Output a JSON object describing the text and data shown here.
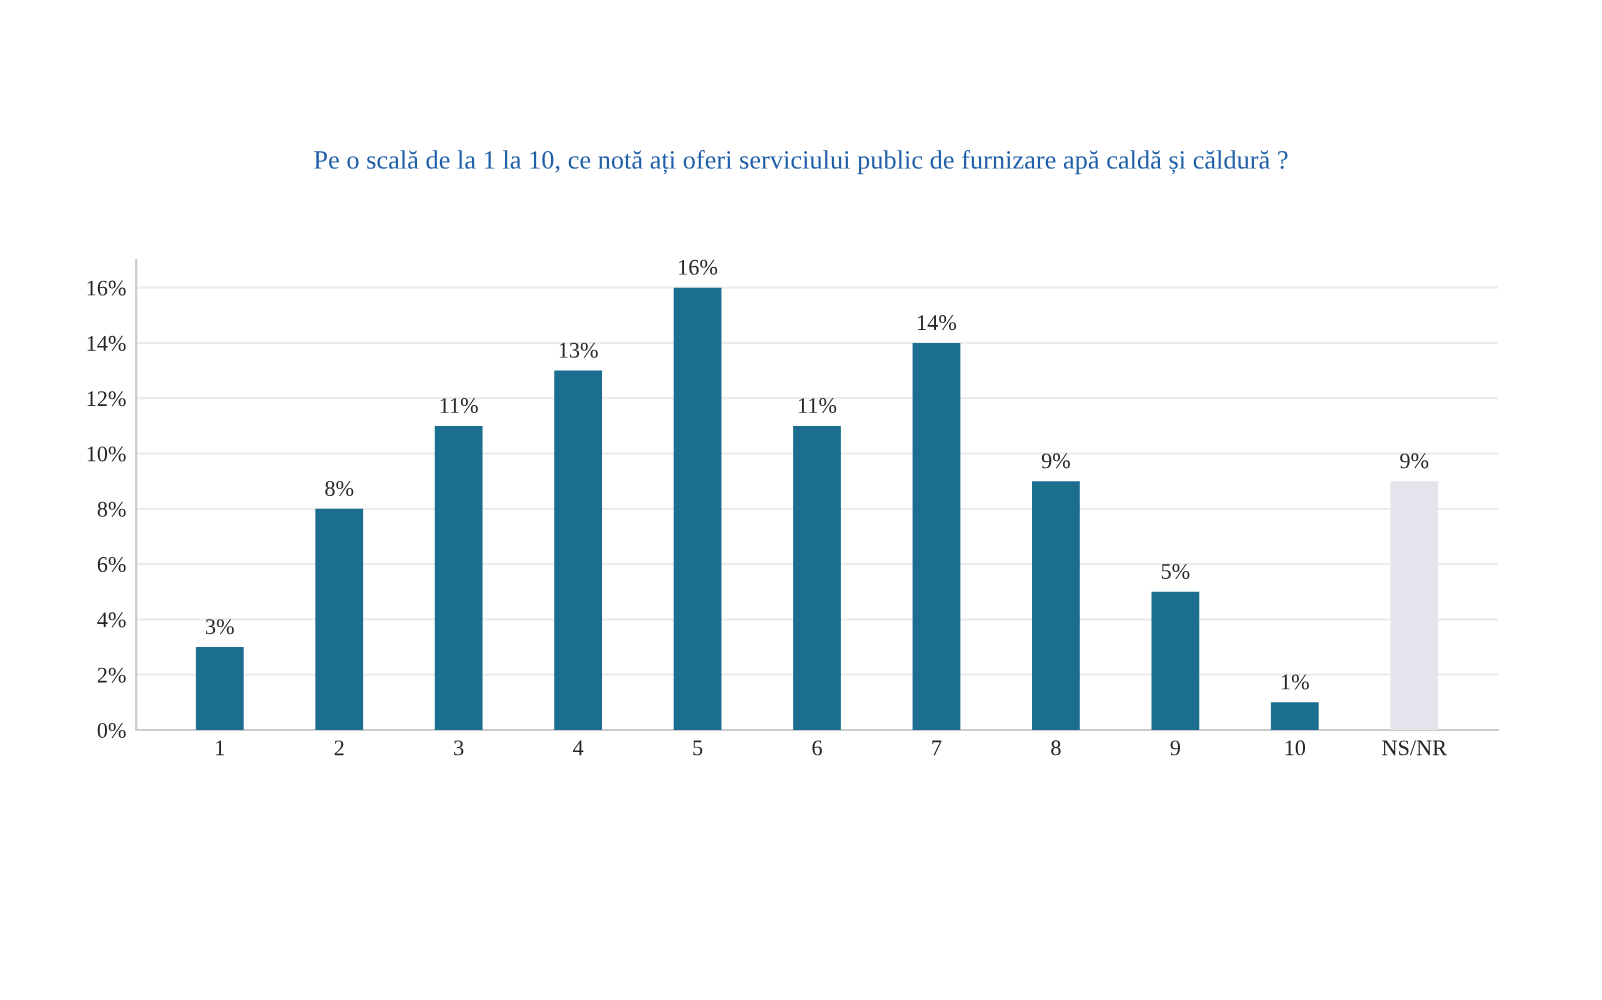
{
  "chart_data": {
    "type": "bar",
    "title": "Pe o scală de la 1 la 10, ce notă ați oferi serviciului public de furnizare apă caldă și căldură ?",
    "categories": [
      "1",
      "2",
      "3",
      "4",
      "5",
      "6",
      "7",
      "8",
      "9",
      "10",
      "NS/NR"
    ],
    "values": [
      3,
      8,
      11,
      13,
      16,
      11,
      14,
      9,
      5,
      1,
      9
    ],
    "colors": [
      "#1c6e91",
      "#1c6e91",
      "#1c6e91",
      "#1c6e91",
      "#1c6e91",
      "#1c6e91",
      "#1c6e91",
      "#1c6e91",
      "#1c6e91",
      "#1c6e91",
      "#e4e4ec"
    ],
    "value_labels": [
      "3%",
      "8%",
      "11%",
      "13%",
      "16%",
      "11%",
      "14%",
      "9%",
      "5%",
      "1%",
      "9%"
    ],
    "ylim": [
      0,
      17
    ],
    "yticks": [
      {
        "value": 0,
        "label": "0%"
      },
      {
        "value": 2,
        "label": "2%"
      },
      {
        "value": 4,
        "label": "4%"
      },
      {
        "value": 6,
        "label": "6%"
      },
      {
        "value": 8,
        "label": "8%"
      },
      {
        "value": 10,
        "label": "10%"
      },
      {
        "value": 12,
        "label": "12%"
      },
      {
        "value": 14,
        "label": "14%"
      },
      {
        "value": 16,
        "label": "16%"
      }
    ],
    "grid": "y"
  }
}
